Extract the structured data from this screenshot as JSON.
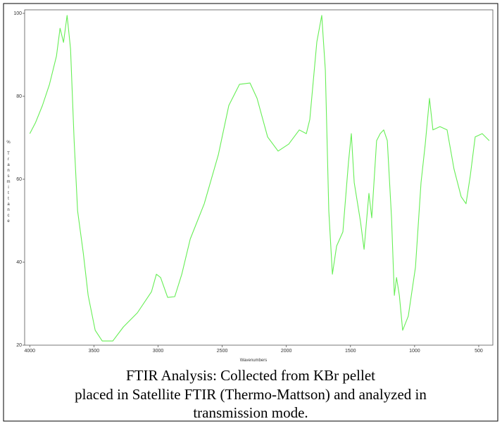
{
  "chart_data": {
    "type": "line",
    "x_label": "Wavenumbers",
    "y_label": "% Transmittance",
    "xlim": [
      4040,
      390
    ],
    "ylim": [
      20,
      100
    ],
    "xticks": [
      4000,
      3500,
      3000,
      2500,
      2000,
      1500,
      1000,
      500
    ],
    "yticks": [
      20,
      40,
      60,
      80,
      100
    ],
    "series": [
      {
        "color": "#66ee55",
        "x": [
          4000,
          3956,
          3901,
          3846,
          3792,
          3764,
          3737,
          3709,
          3682,
          3654,
          3627,
          3583,
          3545,
          3490,
          3435,
          3353,
          3270,
          3161,
          3051,
          3013,
          2980,
          2925,
          2870,
          2815,
          2749,
          2640,
          2530,
          2448,
          2365,
          2283,
          2228,
          2146,
          2064,
          1981,
          1899,
          1844,
          1817,
          1762,
          1724,
          1696,
          1669,
          1641,
          1608,
          1559,
          1515,
          1493,
          1471,
          1422,
          1394,
          1356,
          1334,
          1296,
          1268,
          1241,
          1213,
          1180,
          1158,
          1141,
          1119,
          1093,
          1049,
          993,
          950,
          917,
          884,
          857,
          802,
          747,
          693,
          637,
          599,
          566,
          528,
          473,
          418
        ],
        "values": [
          71.0,
          73.6,
          77.8,
          82.9,
          89.7,
          96.4,
          93.0,
          99.5,
          91.4,
          69.3,
          52.4,
          42.2,
          32.0,
          23.6,
          21.0,
          21.0,
          24.4,
          27.8,
          32.9,
          37.1,
          36.3,
          31.5,
          31.7,
          37.1,
          45.6,
          54.1,
          65.9,
          77.8,
          82.9,
          83.2,
          79.5,
          70.2,
          66.8,
          68.5,
          71.9,
          71.0,
          74.4,
          93.1,
          99.5,
          86.3,
          52.4,
          37.1,
          43.9,
          47.3,
          64.2,
          71.0,
          59.2,
          49.8,
          43.1,
          56.6,
          50.7,
          69.3,
          71.0,
          71.9,
          69.3,
          50.7,
          32.0,
          36.3,
          32.0,
          23.6,
          27.0,
          38.8,
          59.2,
          68.5,
          79.5,
          71.9,
          72.7,
          71.9,
          62.5,
          55.8,
          54.1,
          60.8,
          70.2,
          71.0,
          69.3
        ]
      }
    ]
  },
  "caption": [
    "FTIR Analysis: Collected from KBr pellet",
    "placed in Satellite FTIR (Thermo-Mattson) and analyzed in",
    "transmission mode."
  ]
}
